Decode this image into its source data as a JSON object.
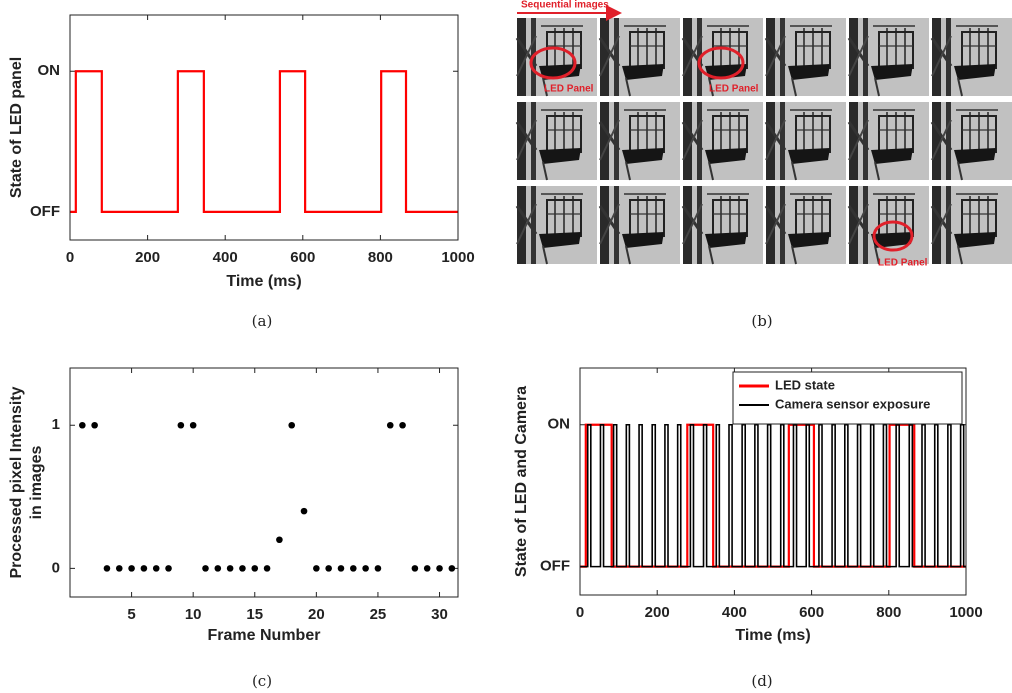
{
  "chart_data": [
    {
      "type": "line",
      "xlabel": "Time (ms)",
      "ylabel": "State of LED panel",
      "caption": "(a)",
      "x": [
        0,
        15,
        15,
        82,
        82,
        278,
        278,
        345,
        345,
        541,
        541,
        606,
        606,
        802,
        802,
        866,
        866,
        1000
      ],
      "values": [
        0,
        0,
        1,
        1,
        0,
        0,
        1,
        1,
        0,
        0,
        1,
        1,
        0,
        0,
        1,
        1,
        0,
        0
      ],
      "color": "#ff0000",
      "xlim": [
        0,
        1000
      ],
      "xticks": [
        0,
        200,
        400,
        600,
        800,
        1000
      ],
      "ylim": [
        -0.2,
        1.4
      ],
      "yticks": [
        {
          "value": 0,
          "label": "OFF"
        },
        {
          "value": 1,
          "label": "ON"
        }
      ]
    },
    {
      "type": "scatter",
      "xlabel": "Frame Number",
      "ylabel": [
        "Processed pixel Intensity",
        "in images"
      ],
      "caption": "(c)",
      "x": [
        1,
        2,
        3,
        4,
        5,
        6,
        7,
        8,
        9,
        10,
        11,
        12,
        13,
        14,
        15,
        16,
        17,
        18,
        19,
        20,
        21,
        22,
        23,
        24,
        25,
        26,
        27,
        28,
        29,
        30,
        31
      ],
      "values": [
        1,
        1,
        0,
        0,
        0,
        0,
        0,
        0,
        1,
        1,
        0,
        0,
        0,
        0,
        0,
        0,
        0.2,
        1,
        0.4,
        0,
        0,
        0,
        0,
        0,
        0,
        1,
        1,
        0,
        0,
        0,
        0
      ],
      "color": "#000000",
      "xlim": [
        0,
        31.5
      ],
      "xticks": [
        5,
        10,
        15,
        20,
        25,
        30
      ],
      "ylim": [
        -0.2,
        1.4
      ],
      "yticks": [
        0,
        1
      ]
    },
    {
      "type": "line",
      "xlabel": "Time (ms)",
      "ylabel": "State of LED and Camera",
      "caption": "(d)",
      "legend": "upper right",
      "series": [
        {
          "name": "LED state",
          "color": "#ff0000",
          "x": [
            0,
            15,
            15,
            82,
            82,
            278,
            278,
            345,
            345,
            541,
            541,
            606,
            606,
            802,
            802,
            866,
            866,
            1000
          ],
          "values": [
            0,
            0,
            1,
            1,
            0,
            0,
            1,
            1,
            0,
            0,
            1,
            1,
            0,
            0,
            1,
            1,
            0,
            0
          ]
        },
        {
          "name": "Camera sensor exposure",
          "color": "#000000",
          "x": [
            0,
            20,
            20,
            28,
            28,
            53,
            53,
            61,
            61,
            87,
            87,
            95,
            95,
            120,
            120,
            128,
            128,
            153,
            153,
            161,
            161,
            187,
            187,
            195,
            195,
            220,
            220,
            228,
            228,
            253,
            253,
            261,
            261,
            286,
            286,
            294,
            294,
            320,
            320,
            328,
            328,
            353,
            353,
            361,
            361,
            386,
            386,
            394,
            394,
            420,
            420,
            428,
            428,
            453,
            453,
            461,
            461,
            486,
            486,
            494,
            494,
            520,
            520,
            528,
            528,
            553,
            553,
            561,
            561,
            586,
            586,
            594,
            594,
            619,
            619,
            627,
            627,
            653,
            653,
            661,
            661,
            686,
            686,
            694,
            694,
            719,
            719,
            727,
            727,
            753,
            753,
            761,
            761,
            786,
            786,
            794,
            794,
            819,
            819,
            827,
            827,
            853,
            853,
            861,
            861,
            886,
            886,
            894,
            894,
            919,
            919,
            927,
            927,
            953,
            953,
            961,
            961,
            986,
            986,
            994,
            994,
            1000
          ],
          "values": [
            0,
            0,
            1,
            1,
            0,
            0,
            1,
            1,
            0,
            0,
            1,
            1,
            0,
            0,
            1,
            1,
            0,
            0,
            1,
            1,
            0,
            0,
            1,
            1,
            0,
            0,
            1,
            1,
            0,
            0,
            1,
            1,
            0,
            0,
            1,
            1,
            0,
            0,
            1,
            1,
            0,
            0,
            1,
            1,
            0,
            0,
            1,
            1,
            0,
            0,
            1,
            1,
            0,
            0,
            1,
            1,
            0,
            0,
            1,
            1,
            0,
            0,
            1,
            1,
            0,
            0,
            1,
            1,
            0,
            0,
            1,
            1,
            0,
            0,
            1,
            1,
            0,
            0,
            1,
            1,
            0,
            0,
            1,
            1,
            0,
            0,
            1,
            1,
            0,
            0,
            1,
            1,
            0,
            0,
            1,
            1,
            0,
            0,
            1,
            1,
            0,
            0,
            1,
            1,
            0,
            0,
            1,
            1,
            0,
            0,
            1,
            1,
            0,
            0,
            1,
            1,
            0,
            0,
            1,
            1,
            0,
            0
          ]
        }
      ],
      "xlim": [
        0,
        1000
      ],
      "xticks": [
        0,
        200,
        400,
        600,
        800,
        1000
      ],
      "ylim": [
        -0.2,
        1.4
      ],
      "yticks": [
        {
          "value": 0,
          "label": "OFF"
        },
        {
          "value": 1,
          "label": "ON"
        }
      ]
    }
  ],
  "image_panel": {
    "title": "Sequential images",
    "annotations": [
      "LED Panel",
      "LED Panel",
      "LED Panel"
    ],
    "caption": "(b)"
  }
}
